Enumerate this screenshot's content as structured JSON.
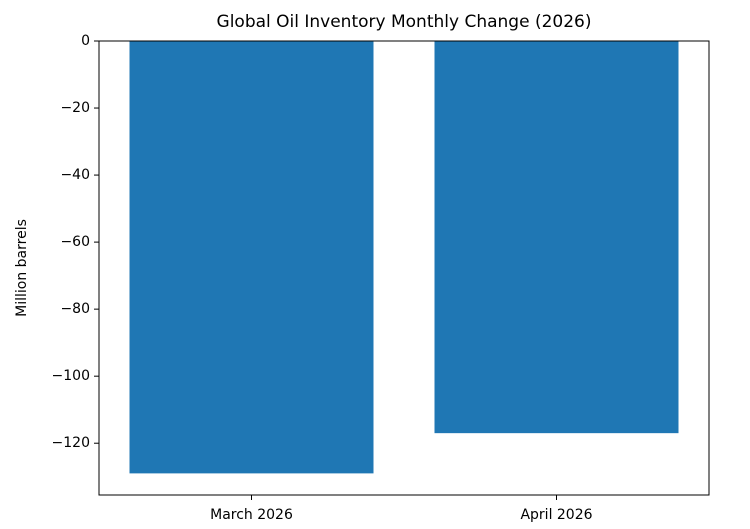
{
  "chart_data": {
    "type": "bar",
    "title": "Global Oil Inventory Monthly Change (2026)",
    "y_label": "Million barrels",
    "categories": [
      "March 2026",
      "April 2026"
    ],
    "values": [
      -129,
      -117
    ],
    "color": "#1f77b4",
    "ylim": [
      -135.45,
      0
    ],
    "yticks": [
      0,
      {
        "value": -20,
        "label": "−20"
      },
      {
        "value": -40,
        "label": "−40"
      },
      {
        "value": -60,
        "label": "−60"
      },
      {
        "value": -80,
        "label": "−80"
      },
      {
        "value": -100,
        "label": "−100"
      },
      {
        "value": -120,
        "label": "−120"
      }
    ],
    "grid": false
  }
}
